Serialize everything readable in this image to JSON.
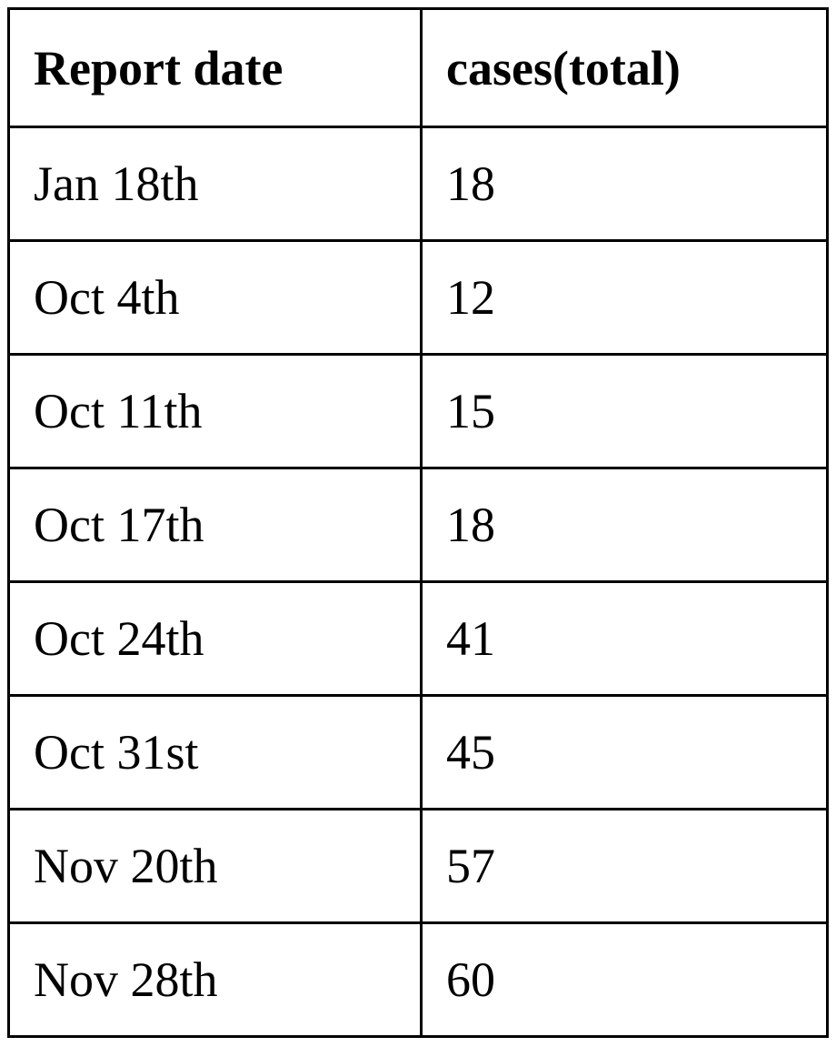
{
  "table": {
    "headers": {
      "date": "Report date",
      "cases": "cases(total)"
    },
    "rows": [
      {
        "date": "Jan 18th",
        "cases": "18"
      },
      {
        "date": "Oct 4th",
        "cases": "12"
      },
      {
        "date": "Oct 11th",
        "cases": "15"
      },
      {
        "date": "Oct 17th",
        "cases": "18"
      },
      {
        "date": "Oct 24th",
        "cases": "41"
      },
      {
        "date": "Oct 31st",
        "cases": "45"
      },
      {
        "date": "Nov 20th",
        "cases": "57"
      },
      {
        "date": "Nov 28th",
        "cases": "60"
      }
    ]
  }
}
